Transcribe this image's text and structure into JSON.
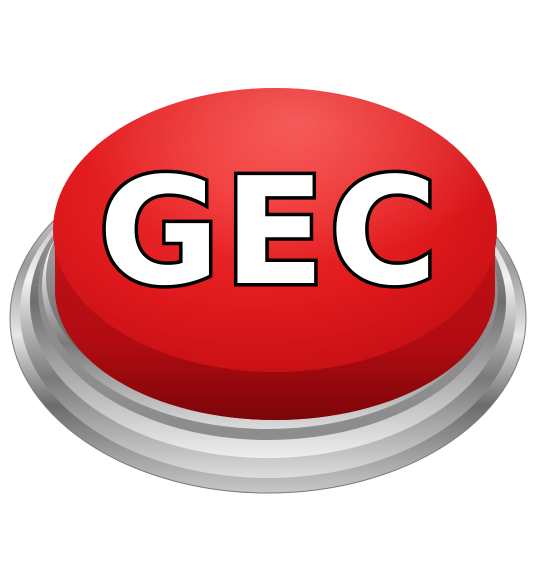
{
  "button": {
    "label": "GEC",
    "cap_color": "#e3171b",
    "cap_highlight": "#ff5a55",
    "cap_shadow": "#a30b0f",
    "text_fill": "#ffffff",
    "text_outline": "#000000",
    "base_color": "#b9babb"
  }
}
